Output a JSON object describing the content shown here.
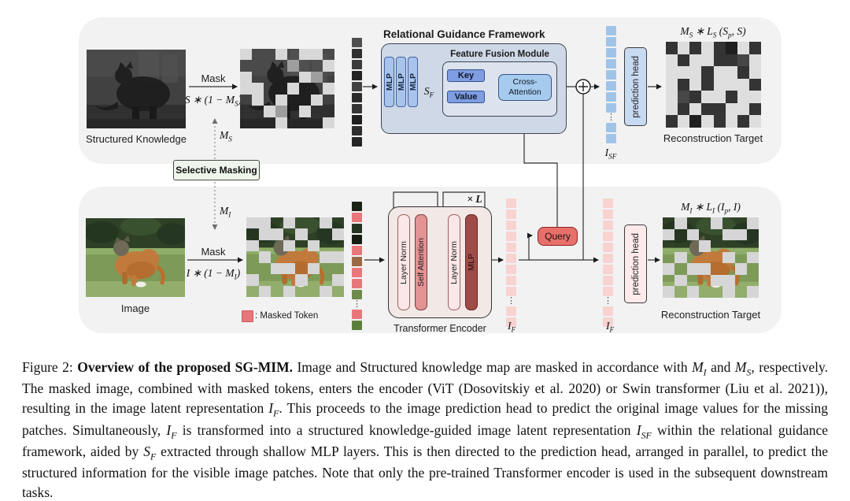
{
  "figure": {
    "top": {
      "source_label": "Structured Knowledge",
      "mask_action": "Mask",
      "mask_formula": "S ∗ (1 − M_{S})",
      "mask_var": "M_{S}",
      "rgf_title": "Relational Guidance Framework",
      "ffm_title": "Feature Fusion Module",
      "mlp_labels": [
        "MLP",
        "MLP",
        "MLP"
      ],
      "sf_label": "S_{F}",
      "key_label": "Key",
      "value_label": "Value",
      "cross_attention_lines": [
        "Cross-",
        "Attention"
      ],
      "tokens_label": "I_{SF}",
      "prediction_head_label": "prediction head",
      "loss_title": "M_{S} ∗ L_{S} (S_{p}, S)",
      "recon_label": "Reconstruction Target"
    },
    "selective_masking_label": "Selective Masking",
    "bottom": {
      "source_label": "Image",
      "mask_action": "Mask",
      "mask_formula": "I ∗ (1 − M_{I})",
      "mask_var": "M_{I}",
      "encoder_title": "Transformer Encoder",
      "bar_labels": [
        "Layer Norm",
        "Self Attention",
        "Layer Norm",
        "MLP"
      ],
      "loop_label": "× L",
      "query_label": "Query",
      "tokens_label_mid": "I_{F}",
      "tokens_label_out": "I_{F}",
      "prediction_head_label": "prediction head",
      "loss_title": "M_{I} ∗ L_{I} (I_{p}, I)",
      "recon_label": "Reconstruction Target",
      "legend_label": ": Masked Token"
    }
  },
  "tokens": {
    "structured": [
      "#4f4f4f",
      "#2f2f2f",
      "#3b3b3b",
      "#232323",
      "#424242",
      "#2b2b2b",
      "#353535",
      "#1f1f1f",
      "#2d2d2d",
      "#262626"
    ],
    "isf": [
      "#a0c4e8",
      "#a0c4e8",
      "#a0c4e8",
      "#a0c4e8",
      "#a0c4e8",
      "#a0c4e8",
      "#a0c4e8",
      "#a0c4e8",
      "dots",
      "#a0c4e8",
      "#a0c4e8"
    ],
    "image_mixed": [
      "#1b2315",
      "#e8767a",
      "#243420",
      "#151c11",
      "#e8767a",
      "#9a6a46",
      "#e8767a",
      "#e8767a",
      "#6f8a4c",
      "dots",
      "#e8767a",
      "#5d7e3a"
    ],
    "if_mid": [
      "#f8d3d1",
      "#f8d3d1",
      "#f8d3d1",
      "#f8d3d1",
      "#f8d3d1",
      "#f8d3d1",
      "#f8d3d1",
      "#f8d3d1",
      "#f8d3d1",
      "dots",
      "#f8d3d1",
      "#f8d3d1"
    ],
    "if_out": [
      "#f8d3d1",
      "#f8d3d1",
      "#f8d3d1",
      "#f8d3d1",
      "#f8d3d1",
      "#f8d3d1",
      "#f8d3d1",
      "#f8d3d1",
      "#f8d3d1",
      "dots",
      "#f8d3d1",
      "#f8d3d1"
    ]
  },
  "grids": {
    "masked_depth": {
      "cols": 8,
      "palette": {
        "1": "#d8d8d8",
        "2": "#9e9e9e"
      },
      "pattern": [
        "10010110",
        "00002001",
        "10000120",
        "11001001",
        "01010010",
        "00120100",
        "00010001"
      ]
    },
    "recon_depth": {
      "cols": 8,
      "palette": {
        "1": "#343434",
        "2": "#1f1f1f",
        "3": "#474747"
      },
      "pattern": [
        "10101201",
        "01001130",
        "00010010",
        "01010001",
        "03100100",
        "01011001",
        "10201010"
      ]
    },
    "masked_image": {
      "cols": 8,
      "palette": {
        "1": "#d6d6d6"
      },
      "pattern": [
        "11010010",
        "01101001",
        "10010100",
        "01000011",
        "00110100",
        "10001001",
        "01010010"
      ]
    },
    "recon_image": {
      "cols": 8,
      "palette": {
        "1": "#d6d6d6"
      },
      "pattern": [
        "01001001",
        "10100110",
        "00010000",
        "01000101",
        "10110010",
        "01001100",
        "10100101"
      ]
    }
  },
  "colors": {
    "panel_bg": "#f2f2f3",
    "rgf_fill": "#ced8e6",
    "ffm_fill": "#dde3ee",
    "mlp_fill": "#a9c4ec",
    "key_value_fill": "#7e9de2",
    "cross_attention_fill": "#a6cbee",
    "blue_token": "#a0c4e8",
    "pink_token": "#f8d3d1",
    "masked_token_red": "#e8767a",
    "query_fill": "#e7706b",
    "encoder_fill": "#f2e8e5",
    "mlp_bar_fill": "#a14b49",
    "selective_masking_fill": "#eef5ea",
    "mask_gray": "#d6d6d6"
  },
  "caption": {
    "segments": [
      {
        "text": "Figure 2: "
      },
      {
        "bold": "Overview of the proposed SG-MIM."
      },
      {
        "text": " Image and Structured knowledge map are masked in accordance with "
      },
      {
        "math": "M_{I}"
      },
      {
        "text": " and "
      },
      {
        "math": "M_{S}"
      },
      {
        "text": ", respectively. The masked image, combined with masked tokens, enters the encoder (ViT (Dosovitskiy et al. 2020) or Swin transformer (Liu et al. 2021)), resulting in the image latent representation "
      },
      {
        "math": "I_{F}"
      },
      {
        "text": ". This proceeds to the image prediction head to predict the original image values for the missing patches. Simultaneously, "
      },
      {
        "math": "I_{F}"
      },
      {
        "text": " is transformed into a structured knowledge-guided image latent representation "
      },
      {
        "math": "I_{SF}"
      },
      {
        "text": " within the relational guidance framework, aided by "
      },
      {
        "math": "S_{F}"
      },
      {
        "text": " extracted through shallow MLP layers. This is then directed to the prediction head, arranged in parallel, to predict the structured information for the visible image patches. Note that only the pre-trained Transformer encoder is used in the subsequent downstream tasks."
      }
    ]
  }
}
